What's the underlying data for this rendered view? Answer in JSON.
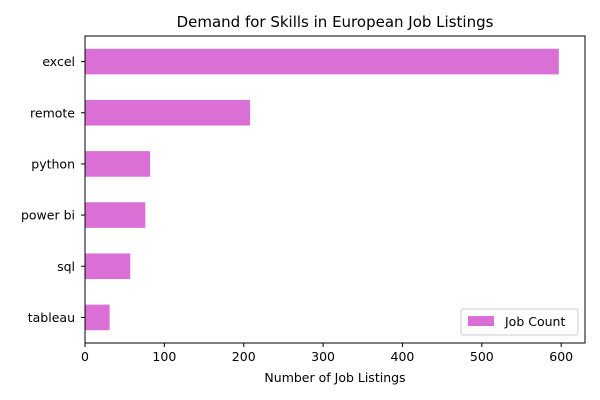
{
  "chart_data": {
    "type": "bar",
    "orientation": "horizontal",
    "title": "Demand for Skills in European Job Listings",
    "xlabel": "Number of Job Listings",
    "ylabel": "",
    "categories": [
      "excel",
      "remote",
      "python",
      "power bi",
      "sql",
      "tableau"
    ],
    "series": [
      {
        "name": "Job Count",
        "values": [
          597,
          208,
          82,
          76,
          57,
          31
        ]
      }
    ],
    "xlim": [
      0,
      630
    ],
    "xticks": [
      0,
      100,
      200,
      300,
      400,
      500,
      600
    ],
    "grid": false,
    "legend_position": "lower-right",
    "bar_color": "#DA70D6"
  }
}
